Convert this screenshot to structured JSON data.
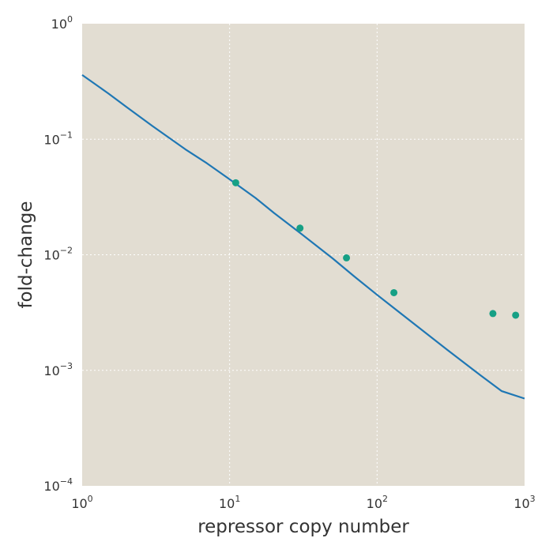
{
  "chart_data": {
    "type": "line",
    "title": "",
    "xlabel": "repressor copy number",
    "ylabel": "fold-change",
    "xscale": "log",
    "yscale": "log",
    "xlim": [
      1,
      1000
    ],
    "ylim": [
      0.0001,
      1
    ],
    "grid": true,
    "x_ticks": [
      {
        "value": 1,
        "base": "10",
        "exp": "0"
      },
      {
        "value": 10,
        "base": "10",
        "exp": "1"
      },
      {
        "value": 100,
        "base": "10",
        "exp": "2"
      },
      {
        "value": 1000,
        "base": "10",
        "exp": "3"
      }
    ],
    "y_ticks": [
      {
        "value": 0.0001,
        "base": "10",
        "exp": "−4"
      },
      {
        "value": 0.001,
        "base": "10",
        "exp": "−3"
      },
      {
        "value": 0.01,
        "base": "10",
        "exp": "−2"
      },
      {
        "value": 0.1,
        "base": "10",
        "exp": "−1"
      },
      {
        "value": 1,
        "base": "10",
        "exp": "0"
      }
    ],
    "series": [
      {
        "type": "line",
        "color": "#1f77b4",
        "x": [
          1,
          1.5,
          2,
          3,
          5,
          7,
          10,
          15,
          20,
          30,
          50,
          70,
          100,
          150,
          200,
          300,
          500,
          700,
          1000
        ],
        "y": [
          0.36,
          0.25,
          0.19,
          0.13,
          0.082,
          0.062,
          0.045,
          0.031,
          0.023,
          0.0155,
          0.0093,
          0.0065,
          0.0045,
          0.003,
          0.00225,
          0.0015,
          0.00091,
          0.00066,
          0.00057
        ]
      },
      {
        "type": "scatter",
        "color": "#16a085",
        "x": [
          11,
          30,
          62,
          130,
          610,
          870
        ],
        "y": [
          0.042,
          0.017,
          0.0094,
          0.0047,
          0.0031,
          0.003
        ]
      }
    ],
    "colors": {
      "plot_background": "#e2ddd2",
      "line": "#1f77b4",
      "points": "#16a085",
      "grid": "#ffffff"
    }
  }
}
